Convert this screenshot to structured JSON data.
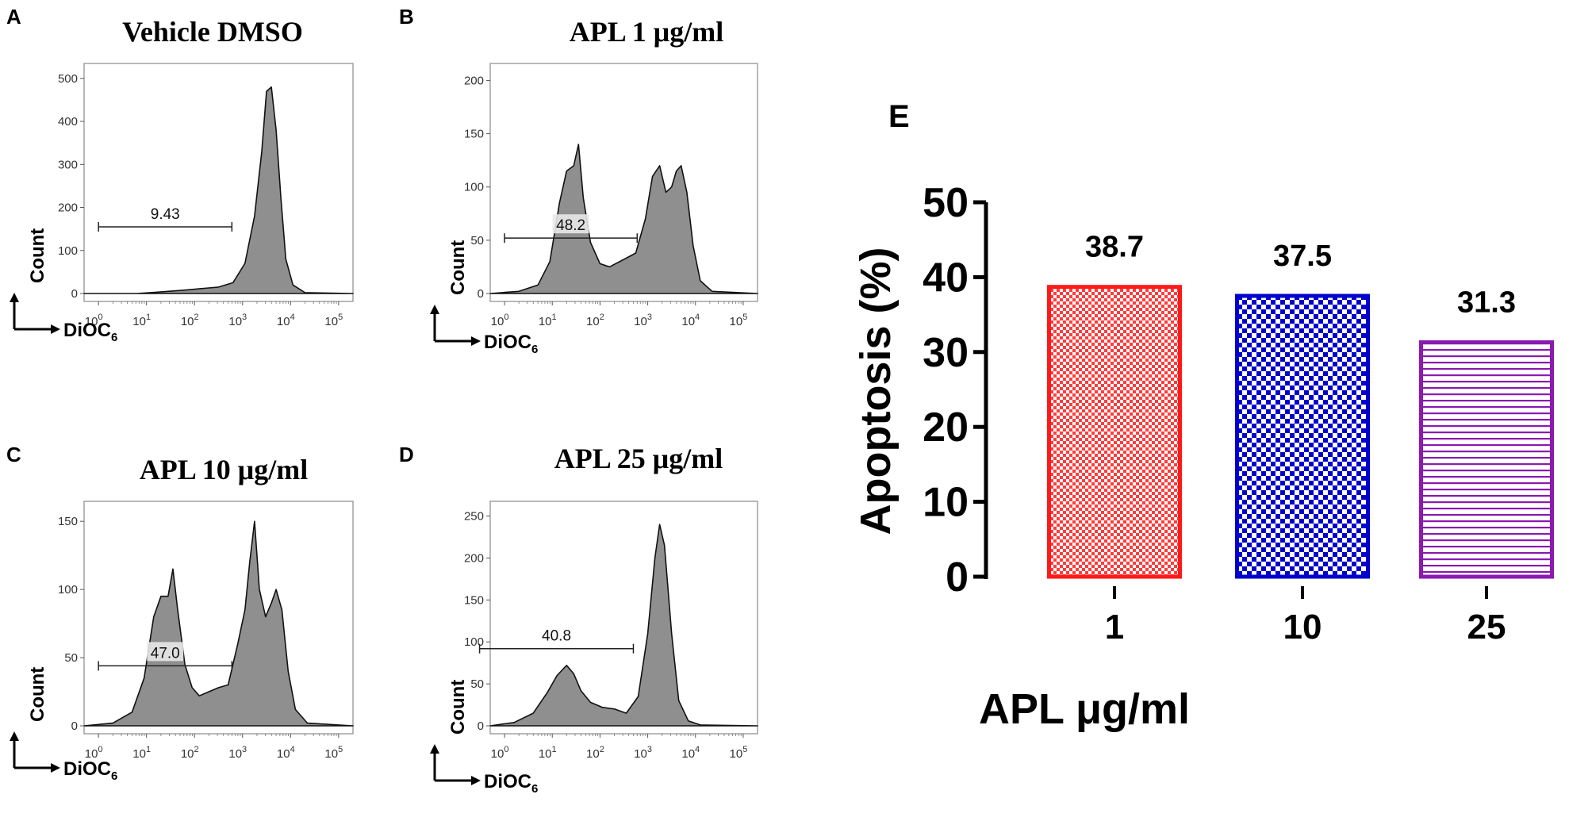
{
  "chart_data": [
    {
      "type": "histogram",
      "panel": "A",
      "title": "Vehicle DMSO",
      "gate_value": "9.43",
      "gate_range": [
        1,
        600
      ],
      "xlabel": "DiOC",
      "xlabel_sub": "6",
      "ylabel": "Count",
      "ylim": [
        0,
        520
      ],
      "yticks": [
        "0",
        "100",
        "200",
        "300",
        "400",
        "500"
      ],
      "ytick_values": [
        0,
        100,
        200,
        300,
        400,
        500
      ],
      "xtick_exponents": [
        "0",
        "1",
        "2",
        "3",
        "4",
        "5"
      ],
      "xtick_base": "10",
      "xlim_log": [
        -0.3,
        5.3
      ],
      "profile": [
        [
          -0.3,
          0
        ],
        [
          0.8,
          0
        ],
        [
          1.2,
          3
        ],
        [
          1.8,
          8
        ],
        [
          2.2,
          12
        ],
        [
          2.5,
          15
        ],
        [
          2.8,
          25
        ],
        [
          3.05,
          70
        ],
        [
          3.25,
          180
        ],
        [
          3.4,
          330
        ],
        [
          3.5,
          470
        ],
        [
          3.6,
          480
        ],
        [
          3.7,
          380
        ],
        [
          3.8,
          220
        ],
        [
          3.9,
          80
        ],
        [
          4.05,
          20
        ],
        [
          4.3,
          2
        ],
        [
          5.3,
          0
        ]
      ]
    },
    {
      "type": "histogram",
      "panel": "B",
      "title": "APL 1 μg/ml",
      "gate_value": "48.2",
      "gate_range": [
        1,
        600
      ],
      "xlabel": "DiOC",
      "xlabel_sub": "6",
      "ylabel": "Count",
      "ylim": [
        0,
        210
      ],
      "yticks": [
        "0",
        "50",
        "100",
        "150",
        "200"
      ],
      "ytick_values": [
        0,
        50,
        100,
        150,
        200
      ],
      "xtick_exponents": [
        "0",
        "1",
        "2",
        "3",
        "4",
        "5"
      ],
      "xtick_base": "10",
      "xlim_log": [
        -0.3,
        5.3
      ],
      "profile": [
        [
          -0.3,
          0
        ],
        [
          0.3,
          2
        ],
        [
          0.7,
          8
        ],
        [
          0.95,
          30
        ],
        [
          1.15,
          85
        ],
        [
          1.3,
          115
        ],
        [
          1.45,
          120
        ],
        [
          1.55,
          140
        ],
        [
          1.65,
          90
        ],
        [
          1.8,
          48
        ],
        [
          2.0,
          28
        ],
        [
          2.2,
          25
        ],
        [
          2.5,
          32
        ],
        [
          2.75,
          38
        ],
        [
          2.95,
          70
        ],
        [
          3.1,
          110
        ],
        [
          3.25,
          120
        ],
        [
          3.38,
          95
        ],
        [
          3.5,
          100
        ],
        [
          3.6,
          115
        ],
        [
          3.7,
          120
        ],
        [
          3.82,
          95
        ],
        [
          3.95,
          45
        ],
        [
          4.1,
          12
        ],
        [
          4.35,
          2
        ],
        [
          5.3,
          0
        ]
      ]
    },
    {
      "type": "histogram",
      "panel": "C",
      "title": "APL 10 μg/ml",
      "gate_value": "47.0",
      "gate_range": [
        1,
        600
      ],
      "xlabel": "DiOC",
      "xlabel_sub": "6",
      "ylabel": "Count",
      "ylim": [
        0,
        160
      ],
      "yticks": [
        "0",
        "50",
        "100",
        "150"
      ],
      "ytick_values": [
        0,
        50,
        100,
        150
      ],
      "xtick_exponents": [
        "0",
        "1",
        "2",
        "3",
        "4",
        "5"
      ],
      "xtick_base": "10",
      "xlim_log": [
        -0.3,
        5.3
      ],
      "profile": [
        [
          -0.3,
          0
        ],
        [
          0.3,
          2
        ],
        [
          0.7,
          10
        ],
        [
          0.95,
          35
        ],
        [
          1.15,
          80
        ],
        [
          1.3,
          95
        ],
        [
          1.45,
          95
        ],
        [
          1.55,
          115
        ],
        [
          1.65,
          85
        ],
        [
          1.8,
          45
        ],
        [
          1.95,
          28
        ],
        [
          2.1,
          22
        ],
        [
          2.3,
          25
        ],
        [
          2.5,
          28
        ],
        [
          2.7,
          30
        ],
        [
          2.9,
          60
        ],
        [
          3.05,
          85
        ],
        [
          3.15,
          120
        ],
        [
          3.25,
          150
        ],
        [
          3.35,
          100
        ],
        [
          3.48,
          80
        ],
        [
          3.6,
          90
        ],
        [
          3.7,
          100
        ],
        [
          3.82,
          85
        ],
        [
          3.95,
          40
        ],
        [
          4.1,
          12
        ],
        [
          4.35,
          2
        ],
        [
          5.3,
          0
        ]
      ]
    },
    {
      "type": "histogram",
      "panel": "D",
      "title": "APL  25 μg/ml",
      "gate_value": "40.8",
      "gate_range": [
        0.3,
        500
      ],
      "xlabel": "DiOC",
      "xlabel_sub": "6",
      "ylabel": "Count",
      "ylim": [
        0,
        260
      ],
      "yticks": [
        "0",
        "50",
        "100",
        "150",
        "200",
        "250"
      ],
      "ytick_values": [
        0,
        50,
        100,
        150,
        200,
        250
      ],
      "xtick_exponents": [
        "0",
        "1",
        "2",
        "3",
        "4",
        "5"
      ],
      "xtick_base": "10",
      "xlim_log": [
        -0.3,
        5.3
      ],
      "profile": [
        [
          -0.3,
          0
        ],
        [
          0.2,
          4
        ],
        [
          0.6,
          15
        ],
        [
          0.9,
          40
        ],
        [
          1.1,
          60
        ],
        [
          1.3,
          72
        ],
        [
          1.45,
          62
        ],
        [
          1.6,
          42
        ],
        [
          1.8,
          28
        ],
        [
          2.05,
          22
        ],
        [
          2.3,
          20
        ],
        [
          2.55,
          15
        ],
        [
          2.8,
          35
        ],
        [
          3.0,
          110
        ],
        [
          3.15,
          200
        ],
        [
          3.25,
          240
        ],
        [
          3.35,
          215
        ],
        [
          3.5,
          110
        ],
        [
          3.65,
          30
        ],
        [
          3.85,
          6
        ],
        [
          4.1,
          1
        ],
        [
          5.3,
          0
        ]
      ]
    },
    {
      "type": "bar",
      "panel": "E",
      "categories": [
        "1",
        "10",
        "25"
      ],
      "values": [
        38.7,
        37.5,
        31.3
      ],
      "value_labels": [
        "38.7",
        "37.5",
        "31.3"
      ],
      "xlabel": "APL μg/ml",
      "ylabel": "Apoptosis (%)",
      "ylim": [
        0,
        50
      ],
      "yticks": [
        "0",
        "10",
        "20",
        "30",
        "40",
        "50"
      ],
      "ytick_values": [
        0,
        10,
        20,
        30,
        40,
        50
      ],
      "bar_styles": [
        {
          "color": "#ff1a1a",
          "pattern": "fine-check"
        },
        {
          "color": "#0000cc",
          "pattern": "checker"
        },
        {
          "color": "#8a1ab0",
          "pattern": "horizontal-lines"
        }
      ]
    }
  ]
}
